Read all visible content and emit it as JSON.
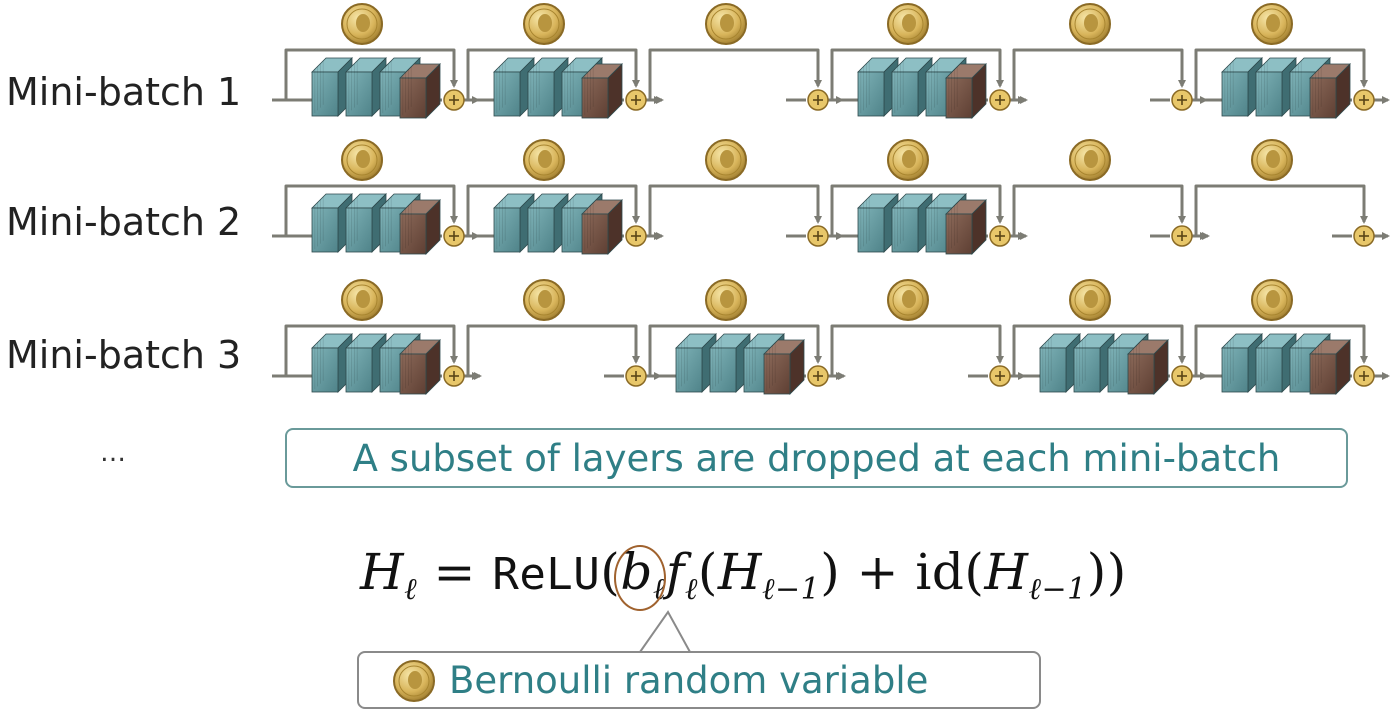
{
  "rows": [
    {
      "label": "Mini-batch 1",
      "active": [
        true,
        true,
        false,
        true,
        false,
        true
      ]
    },
    {
      "label": "Mini-batch 2",
      "active": [
        true,
        true,
        false,
        true,
        false,
        false
      ]
    },
    {
      "label": "Mini-batch 3",
      "active": [
        true,
        false,
        true,
        false,
        true,
        true
      ]
    }
  ],
  "ellipsis": "…",
  "callout_text": "A subset of layers are dropped at each mini-batch",
  "formula": {
    "lhs": "H",
    "sub_l": "ℓ",
    "equals": "=",
    "relu": "ReLU",
    "b": "b",
    "f": "f",
    "sub_lm1": "ℓ−1",
    "plus": "+",
    "id": "id"
  },
  "legend_text": "Bernoulli random variable",
  "colors": {
    "teal_block": "#5a8d93",
    "brown_block": "#6e4b3e",
    "arrow": "#7c7c74",
    "coin": "#d8b45a",
    "callout_text": "#2f7f86"
  }
}
